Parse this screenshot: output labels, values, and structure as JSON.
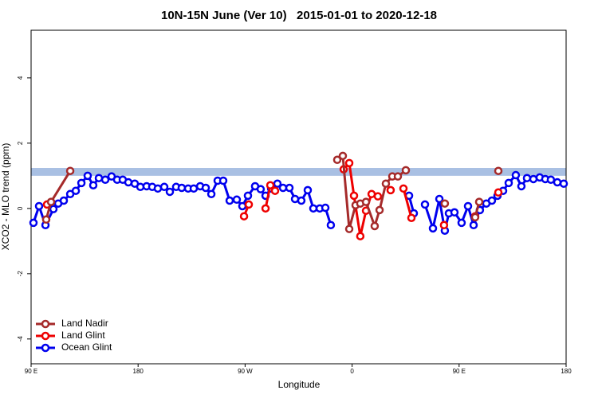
{
  "chart_data": {
    "type": "line",
    "title": "10N-15N June (Ver 10)   2015-01-01 to 2020-12-18",
    "x_label": "Longitude",
    "y_label": "XCO2 - MLO trend (ppm)",
    "xlim": [
      90,
      540
    ],
    "ylim": [
      -4.76,
      5.46
    ],
    "xticks": [
      {
        "value": 90,
        "label": "90 E"
      },
      180,
      {
        "value": 270,
        "label": "90 W"
      },
      {
        "value": 360,
        "label": "0"
      },
      {
        "value": 450,
        "label": "90 E"
      },
      {
        "value": 540,
        "label": "180"
      }
    ],
    "yticks": [
      -4,
      -2,
      0,
      2,
      4
    ],
    "band": {
      "ylim": [
        1.0,
        1.24
      ],
      "color": "#a9c0e3"
    },
    "legend": "bottom-left",
    "series": [
      {
        "name": "Land Nadir",
        "color": "#a52a2a",
        "x": [
          102.7,
          106.8,
          122.9,
          null,
          347.5,
          352.2,
          357.6,
          362.9,
          366.9,
          371.7,
          379.0,
          383.1,
          388.4,
          393.8,
          398.5,
          405.2,
          null,
          438.0,
          null,
          463.5,
          466.9,
          null,
          483.0
        ],
        "values": [
          -0.34,
          0.2,
          1.15,
          null,
          1.49,
          1.61,
          -0.63,
          0.1,
          0.15,
          0.2,
          -0.54,
          -0.05,
          0.76,
          0.98,
          0.98,
          1.17,
          null,
          0.15,
          null,
          -0.27,
          0.2,
          null,
          1.15
        ]
      },
      {
        "name": "Land Glint",
        "color": "#ee0000",
        "x": [
          103.4,
          null,
          269.1,
          273.1,
          null,
          287.2,
          291.2,
          295.2,
          null,
          352.9,
          357.6,
          361.6,
          366.9,
          371.7,
          376.4,
          381.7,
          null,
          392.4,
          null,
          403.2,
          409.9,
          null,
          437.3,
          null,
          463.5,
          null,
          483.0
        ],
        "values": [
          0.12,
          null,
          -0.24,
          0.12,
          null,
          0,
          0.71,
          0.54,
          null,
          1.2,
          1.39,
          0.39,
          -0.85,
          -0.07,
          0.44,
          0.37,
          null,
          0.56,
          null,
          0.61,
          -0.29,
          null,
          -0.51,
          null,
          -0.24,
          null,
          0.49
        ]
      },
      {
        "name": "Ocean Glint",
        "color": "#0000ee",
        "x": [
          92.0,
          96.7,
          102.1,
          108.8,
          112.8,
          117.5,
          122.9,
          127.6,
          132.3,
          137.6,
          142.3,
          147.0,
          152.4,
          157.7,
          162.4,
          167.1,
          171.8,
          177.2,
          181.9,
          187.2,
          191.9,
          196.6,
          202.0,
          206.7,
          212.0,
          216.7,
          222.1,
          226.8,
          232.2,
          236.9,
          241.6,
          246.9,
          251.6,
          257.0,
          263.0,
          267.7,
          272.4,
          278.4,
          283.1,
          287.2,
          291.9,
          297.2,
          301.9,
          307.3,
          312.0,
          317.3,
          322.7,
          327.4,
          332.8,
          337.5,
          342.1,
          null,
          407.9,
          411.9,
          null,
          421.3,
          428.0,
          433.4,
          438.0,
          441.4,
          446.1,
          452.1,
          457.5,
          462.2,
          467.5,
          472.9,
          477.6,
          482.3,
          487.0,
          491.7,
          497.7,
          502.4,
          507.1,
          512.5,
          517.8,
          522.5,
          527.2,
          532.6,
          538.0
        ],
        "values": [
          -0.44,
          0.07,
          -0.51,
          -0.02,
          0.15,
          0.24,
          0.44,
          0.54,
          0.78,
          1.0,
          0.71,
          0.93,
          0.88,
          0.98,
          0.88,
          0.88,
          0.8,
          0.76,
          0.66,
          0.68,
          0.66,
          0.61,
          0.66,
          0.51,
          0.66,
          0.63,
          0.61,
          0.61,
          0.68,
          0.63,
          0.44,
          0.85,
          0.85,
          0.24,
          0.27,
          0.07,
          0.39,
          0.68,
          0.59,
          0.39,
          0.61,
          0.76,
          0.63,
          0.63,
          0.29,
          0.24,
          0.56,
          0,
          0,
          0.02,
          -0.51,
          null,
          0.39,
          -0.15,
          null,
          0.12,
          -0.61,
          0.29,
          -0.68,
          -0.15,
          -0.12,
          -0.44,
          0.07,
          -0.51,
          -0.05,
          0.15,
          0.24,
          0.39,
          0.54,
          0.78,
          1.02,
          0.68,
          0.93,
          0.9,
          0.95,
          0.9,
          0.88,
          0.8,
          0.76
        ]
      }
    ]
  }
}
